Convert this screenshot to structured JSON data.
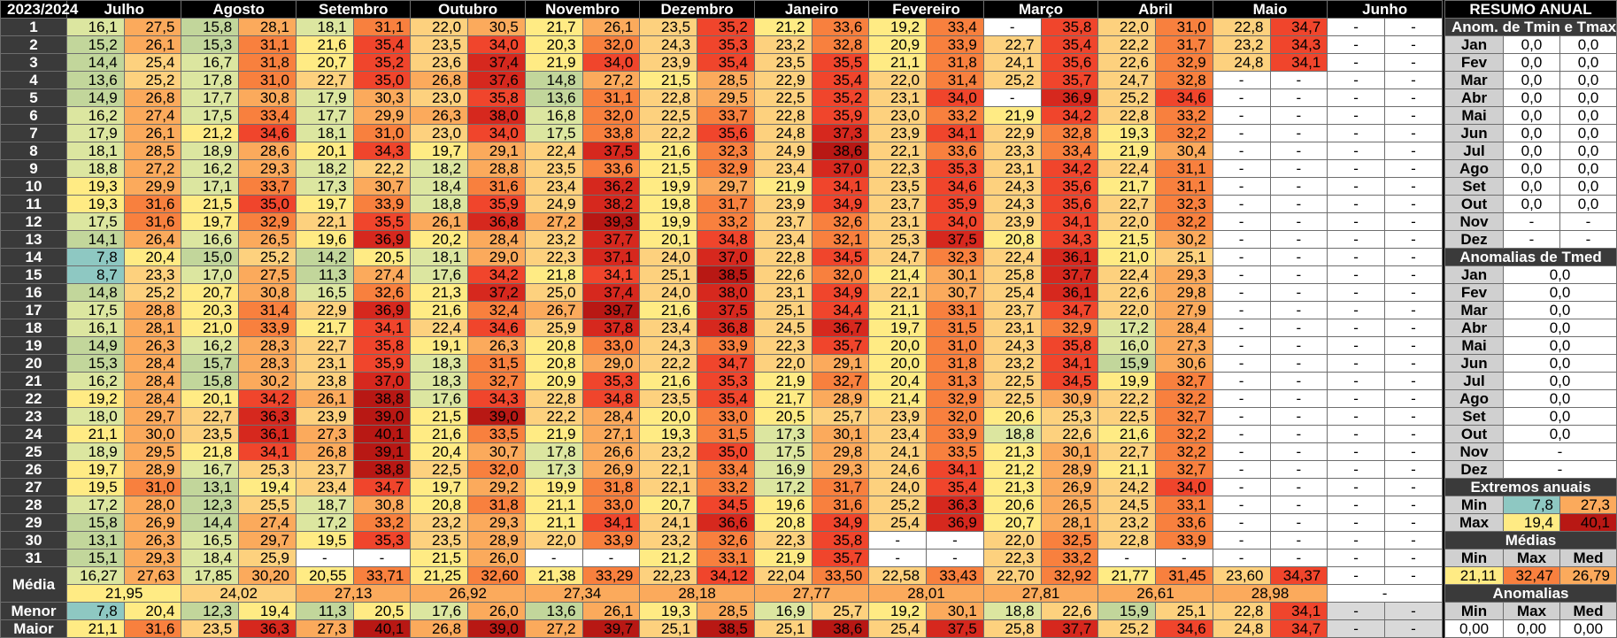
{
  "title": "2023/2024",
  "months": [
    "Julho",
    "Agosto",
    "Setembro",
    "Outubro",
    "Novembro",
    "Dezembro",
    "Janeiro",
    "Fevereiro",
    "Março",
    "Abril",
    "Maio",
    "Junho"
  ],
  "rows": [
    [
      "16,1",
      "27,5",
      "15,8",
      "28,1",
      "18,1",
      "31,1",
      "22,0",
      "30,5",
      "21,7",
      "26,1",
      "23,5",
      "35,2",
      "21,2",
      "33,6",
      "19,2",
      "33,4",
      "-",
      "35,8",
      "22,0",
      "31,0",
      "22,8",
      "34,7",
      "-",
      "-"
    ],
    [
      "15,2",
      "26,1",
      "15,3",
      "31,1",
      "21,6",
      "35,4",
      "23,5",
      "34,0",
      "20,3",
      "32,0",
      "24,3",
      "35,3",
      "23,2",
      "32,8",
      "20,9",
      "33,9",
      "22,7",
      "35,4",
      "22,2",
      "31,7",
      "23,2",
      "34,3",
      "-",
      "-"
    ],
    [
      "14,4",
      "25,4",
      "16,7",
      "31,8",
      "20,7",
      "35,2",
      "23,6",
      "37,4",
      "21,9",
      "34,0",
      "23,9",
      "35,4",
      "23,5",
      "35,5",
      "21,1",
      "31,8",
      "24,1",
      "35,6",
      "22,6",
      "32,9",
      "24,8",
      "34,1",
      "-",
      "-"
    ],
    [
      "13,6",
      "25,2",
      "17,8",
      "31,0",
      "22,7",
      "35,0",
      "26,8",
      "37,6",
      "14,8",
      "27,2",
      "21,5",
      "28,5",
      "22,9",
      "35,4",
      "22,0",
      "31,4",
      "25,2",
      "35,7",
      "24,7",
      "32,8",
      "-",
      "-",
      "-",
      "-"
    ],
    [
      "14,9",
      "26,8",
      "17,7",
      "30,8",
      "17,9",
      "30,3",
      "23,0",
      "35,8",
      "13,6",
      "31,1",
      "22,8",
      "29,5",
      "22,5",
      "35,2",
      "23,1",
      "34,0",
      "-",
      "36,9",
      "25,2",
      "34,6",
      "-",
      "-",
      "-",
      "-"
    ],
    [
      "16,2",
      "27,4",
      "17,5",
      "33,4",
      "17,7",
      "29,9",
      "26,3",
      "38,0",
      "16,8",
      "32,0",
      "22,5",
      "33,7",
      "22,8",
      "35,9",
      "23,0",
      "33,2",
      "21,9",
      "34,2",
      "22,8",
      "33,2",
      "-",
      "-",
      "-",
      "-"
    ],
    [
      "17,9",
      "26,1",
      "21,2",
      "34,6",
      "18,1",
      "31,0",
      "23,0",
      "34,0",
      "17,5",
      "33,8",
      "22,2",
      "35,6",
      "24,8",
      "37,3",
      "23,9",
      "34,1",
      "22,9",
      "32,8",
      "19,3",
      "32,2",
      "-",
      "-",
      "-",
      "-"
    ],
    [
      "18,1",
      "28,5",
      "18,9",
      "28,6",
      "20,1",
      "34,3",
      "19,7",
      "29,1",
      "22,4",
      "37,5",
      "21,6",
      "32,3",
      "24,9",
      "38,6",
      "22,1",
      "33,6",
      "23,3",
      "33,4",
      "21,9",
      "30,4",
      "-",
      "-",
      "-",
      "-"
    ],
    [
      "18,8",
      "27,2",
      "16,2",
      "29,3",
      "18,2",
      "22,2",
      "18,2",
      "28,8",
      "23,5",
      "33,6",
      "21,5",
      "32,9",
      "23,4",
      "37,0",
      "22,3",
      "35,3",
      "23,1",
      "34,2",
      "22,4",
      "31,1",
      "-",
      "-",
      "-",
      "-"
    ],
    [
      "19,3",
      "29,9",
      "17,1",
      "33,7",
      "17,3",
      "30,7",
      "18,4",
      "31,6",
      "23,4",
      "36,2",
      "19,9",
      "29,7",
      "21,9",
      "34,1",
      "23,5",
      "34,6",
      "24,3",
      "35,6",
      "21,7",
      "31,1",
      "-",
      "-",
      "-",
      "-"
    ],
    [
      "19,3",
      "31,6",
      "21,5",
      "35,0",
      "19,7",
      "33,9",
      "18,8",
      "35,9",
      "24,9",
      "38,2",
      "19,8",
      "31,7",
      "23,9",
      "34,9",
      "23,7",
      "35,9",
      "24,3",
      "35,6",
      "22,7",
      "32,3",
      "-",
      "-",
      "-",
      "-"
    ],
    [
      "17,5",
      "31,6",
      "19,7",
      "32,9",
      "22,1",
      "35,5",
      "26,1",
      "36,8",
      "27,2",
      "39,3",
      "19,9",
      "33,2",
      "23,7",
      "32,6",
      "23,1",
      "34,0",
      "23,9",
      "34,1",
      "22,0",
      "32,2",
      "-",
      "-",
      "-",
      "-"
    ],
    [
      "14,1",
      "26,4",
      "16,6",
      "26,5",
      "19,6",
      "36,9",
      "20,2",
      "28,4",
      "23,2",
      "37,7",
      "20,1",
      "34,8",
      "23,4",
      "32,1",
      "25,3",
      "37,5",
      "20,8",
      "34,3",
      "21,5",
      "30,2",
      "-",
      "-",
      "-",
      "-"
    ],
    [
      "7,8",
      "20,4",
      "15,0",
      "25,2",
      "14,2",
      "20,5",
      "18,1",
      "29,0",
      "22,3",
      "37,1",
      "24,0",
      "37,0",
      "22,8",
      "34,5",
      "24,7",
      "32,3",
      "22,4",
      "36,1",
      "21,0",
      "25,1",
      "-",
      "-",
      "-",
      "-"
    ],
    [
      "8,7",
      "23,3",
      "17,0",
      "27,5",
      "11,3",
      "27,4",
      "17,6",
      "34,2",
      "21,8",
      "34,1",
      "25,1",
      "38,5",
      "22,6",
      "32,0",
      "21,4",
      "30,1",
      "25,8",
      "37,7",
      "22,4",
      "29,3",
      "-",
      "-",
      "-",
      "-"
    ],
    [
      "14,8",
      "25,2",
      "20,7",
      "30,8",
      "16,5",
      "32,6",
      "21,3",
      "37,2",
      "25,0",
      "37,4",
      "24,0",
      "38,0",
      "23,1",
      "34,9",
      "22,1",
      "30,7",
      "25,4",
      "36,1",
      "22,6",
      "29,8",
      "-",
      "-",
      "-",
      "-"
    ],
    [
      "17,5",
      "28,8",
      "20,3",
      "31,4",
      "22,9",
      "36,9",
      "21,6",
      "32,4",
      "26,7",
      "39,7",
      "21,6",
      "37,5",
      "25,1",
      "34,4",
      "21,1",
      "33,1",
      "23,7",
      "34,7",
      "22,0",
      "27,9",
      "-",
      "-",
      "-",
      "-"
    ],
    [
      "16,1",
      "28,1",
      "21,0",
      "33,9",
      "21,7",
      "34,1",
      "22,4",
      "34,6",
      "25,9",
      "37,8",
      "23,4",
      "36,8",
      "24,5",
      "36,7",
      "19,7",
      "31,5",
      "23,1",
      "32,9",
      "17,2",
      "28,4",
      "-",
      "-",
      "-",
      "-"
    ],
    [
      "14,9",
      "26,3",
      "16,2",
      "28,3",
      "22,7",
      "35,8",
      "19,1",
      "26,3",
      "20,8",
      "33,0",
      "24,3",
      "33,9",
      "22,3",
      "35,7",
      "20,0",
      "31,0",
      "24,3",
      "35,8",
      "16,0",
      "27,3",
      "-",
      "-",
      "-",
      "-"
    ],
    [
      "15,3",
      "28,4",
      "15,7",
      "28,3",
      "23,1",
      "35,9",
      "18,3",
      "31,5",
      "20,8",
      "29,0",
      "22,2",
      "34,7",
      "22,0",
      "29,1",
      "20,0",
      "31,8",
      "23,2",
      "34,1",
      "15,9",
      "30,6",
      "-",
      "-",
      "-",
      "-"
    ],
    [
      "16,2",
      "28,4",
      "15,8",
      "30,2",
      "23,8",
      "37,0",
      "18,3",
      "32,7",
      "20,9",
      "35,3",
      "21,6",
      "35,3",
      "21,9",
      "32,7",
      "20,4",
      "31,3",
      "22,5",
      "34,5",
      "19,9",
      "32,7",
      "-",
      "-",
      "-",
      "-"
    ],
    [
      "19,2",
      "28,4",
      "20,1",
      "34,2",
      "26,1",
      "38,8",
      "17,6",
      "34,3",
      "22,8",
      "34,8",
      "23,5",
      "35,4",
      "21,7",
      "28,9",
      "21,4",
      "32,9",
      "22,5",
      "30,9",
      "22,2",
      "32,2",
      "-",
      "-",
      "-",
      "-"
    ],
    [
      "18,0",
      "29,7",
      "22,7",
      "36,3",
      "23,9",
      "39,0",
      "21,5",
      "39,0",
      "22,2",
      "28,4",
      "20,0",
      "33,0",
      "20,5",
      "25,7",
      "23,9",
      "32,0",
      "20,6",
      "25,3",
      "22,5",
      "32,7",
      "-",
      "-",
      "-",
      "-"
    ],
    [
      "21,1",
      "30,0",
      "23,5",
      "36,1",
      "27,3",
      "40,1",
      "21,6",
      "33,5",
      "21,9",
      "27,1",
      "19,3",
      "31,5",
      "17,3",
      "30,1",
      "23,4",
      "33,9",
      "18,8",
      "22,6",
      "21,6",
      "32,2",
      "-",
      "-",
      "-",
      "-"
    ],
    [
      "18,9",
      "29,5",
      "21,8",
      "34,1",
      "26,8",
      "39,1",
      "20,4",
      "30,7",
      "17,8",
      "26,6",
      "23,2",
      "35,0",
      "17,5",
      "29,8",
      "24,1",
      "33,5",
      "21,3",
      "30,1",
      "22,7",
      "32,2",
      "-",
      "-",
      "-",
      "-"
    ],
    [
      "19,7",
      "28,9",
      "16,7",
      "25,3",
      "23,7",
      "38,8",
      "22,5",
      "32,0",
      "17,3",
      "26,9",
      "22,1",
      "33,4",
      "16,9",
      "29,3",
      "24,6",
      "34,1",
      "21,2",
      "28,9",
      "21,1",
      "32,7",
      "-",
      "-",
      "-",
      "-"
    ],
    [
      "19,5",
      "31,0",
      "13,1",
      "19,4",
      "23,4",
      "34,7",
      "19,7",
      "29,2",
      "19,9",
      "31,8",
      "22,1",
      "33,2",
      "17,2",
      "31,7",
      "24,0",
      "35,4",
      "21,3",
      "26,9",
      "24,2",
      "34,0",
      "-",
      "-",
      "-",
      "-"
    ],
    [
      "17,2",
      "28,0",
      "12,3",
      "25,5",
      "18,7",
      "30,8",
      "20,8",
      "31,8",
      "21,1",
      "33,0",
      "20,7",
      "34,5",
      "19,6",
      "31,6",
      "25,2",
      "36,3",
      "20,6",
      "26,5",
      "24,5",
      "33,1",
      "-",
      "-",
      "-",
      "-"
    ],
    [
      "15,8",
      "26,9",
      "14,4",
      "27,4",
      "17,2",
      "33,2",
      "23,2",
      "29,3",
      "21,1",
      "34,1",
      "24,1",
      "36,6",
      "20,8",
      "34,9",
      "25,4",
      "36,9",
      "20,7",
      "28,1",
      "23,2",
      "33,6",
      "-",
      "-",
      "-",
      "-"
    ],
    [
      "13,1",
      "26,3",
      "16,5",
      "29,7",
      "19,5",
      "35,3",
      "23,5",
      "28,9",
      "22,0",
      "33,9",
      "23,2",
      "32,6",
      "22,3",
      "35,8",
      "-",
      "-",
      "22,0",
      "32,5",
      "22,8",
      "33,9",
      "-",
      "-",
      "-",
      "-"
    ],
    [
      "15,1",
      "29,3",
      "18,4",
      "25,9",
      "-",
      "-",
      "21,5",
      "26,0",
      "-",
      "-",
      "21,2",
      "33,1",
      "21,9",
      "35,7",
      "-",
      "-",
      "22,3",
      "33,2",
      "-",
      "-",
      "-",
      "-",
      "-",
      "-"
    ]
  ],
  "media_label": "Média",
  "media_pairs": [
    "16,27",
    "27,63",
    "17,85",
    "30,20",
    "20,55",
    "33,71",
    "21,25",
    "32,60",
    "21,38",
    "33,29",
    "22,23",
    "34,12",
    "22,04",
    "33,50",
    "22,58",
    "33,43",
    "22,70",
    "32,92",
    "21,77",
    "31,45",
    "23,60",
    "34,37",
    "-",
    "-"
  ],
  "media_med": [
    "21,95",
    "24,02",
    "27,13",
    "26,92",
    "27,34",
    "28,18",
    "27,77",
    "28,01",
    "27,81",
    "26,61",
    "28,98",
    "-"
  ],
  "menor_label": "Menor",
  "menor": [
    "7,8",
    "20,4",
    "12,3",
    "19,4",
    "11,3",
    "20,5",
    "17,6",
    "26,0",
    "13,6",
    "26,1",
    "19,3",
    "28,5",
    "16,9",
    "25,7",
    "19,2",
    "30,1",
    "18,8",
    "22,6",
    "15,9",
    "25,1",
    "22,8",
    "34,1",
    "-",
    "-"
  ],
  "maior_label": "Maior",
  "maior": [
    "21,1",
    "31,6",
    "23,5",
    "36,3",
    "27,3",
    "40,1",
    "26,8",
    "39,0",
    "27,2",
    "39,7",
    "25,1",
    "38,5",
    "25,1",
    "38,6",
    "25,4",
    "37,5",
    "25,8",
    "37,7",
    "25,2",
    "34,6",
    "24,8",
    "34,7",
    "-",
    "-"
  ],
  "side": {
    "title": "RESUMO ANUAL",
    "anom_title": "Anom. de Tmin e Tmax",
    "anom_rows": [
      {
        "m": "Jan",
        "a": "0,0",
        "b": "0,0"
      },
      {
        "m": "Fev",
        "a": "0,0",
        "b": "0,0"
      },
      {
        "m": "Mar",
        "a": "0,0",
        "b": "0,0"
      },
      {
        "m": "Abr",
        "a": "0,0",
        "b": "0,0"
      },
      {
        "m": "Mai",
        "a": "0,0",
        "b": "0,0"
      },
      {
        "m": "Jun",
        "a": "0,0",
        "b": "0,0"
      },
      {
        "m": "Jul",
        "a": "0,0",
        "b": "0,0"
      },
      {
        "m": "Ago",
        "a": "0,0",
        "b": "0,0"
      },
      {
        "m": "Set",
        "a": "0,0",
        "b": "0,0"
      },
      {
        "m": "Out",
        "a": "0,0",
        "b": "0,0"
      },
      {
        "m": "Nov",
        "a": "-",
        "b": "-"
      },
      {
        "m": "Dez",
        "a": "-",
        "b": "-"
      }
    ],
    "tmed_title": "Anomalias de Tmed",
    "tmed_rows": [
      {
        "m": "Jan",
        "v": "0,0"
      },
      {
        "m": "Fev",
        "v": "0,0"
      },
      {
        "m": "Mar",
        "v": "0,0"
      },
      {
        "m": "Abr",
        "v": "0,0"
      },
      {
        "m": "Mai",
        "v": "0,0"
      },
      {
        "m": "Jun",
        "v": "0,0"
      },
      {
        "m": "Jul",
        "v": "0,0"
      },
      {
        "m": "Ago",
        "v": "0,0"
      },
      {
        "m": "Set",
        "v": "0,0"
      },
      {
        "m": "Out",
        "v": "0,0"
      },
      {
        "m": "Nov",
        "v": "-"
      },
      {
        "m": "Dez",
        "v": "-"
      }
    ],
    "ext_title": "Extremos anuais",
    "ext_min_label": "Min",
    "ext_min_a": "7,8",
    "ext_min_b": "27,3",
    "ext_max_label": "Max",
    "ext_max_a": "19,4",
    "ext_max_b": "40,1",
    "medias_title": "Médias",
    "medias_head": [
      "Min",
      "Max",
      "Med"
    ],
    "medias_vals": [
      "21,11",
      "32,47",
      "26,79"
    ],
    "anomalias_title": "Anomalias",
    "anomalias_head": [
      "Min",
      "Max",
      "Med"
    ],
    "anomalias_vals": [
      "0,00",
      "0,00",
      "0,00"
    ]
  },
  "palette": {
    "blue": "#8ec8c2",
    "green": "#c2d69b",
    "lime": "#dce6a0",
    "yellow": "#ffeb84",
    "lorange": "#fdd17e",
    "orange": "#fbaa5c",
    "dorange": "#f8803e",
    "red": "#f0452c",
    "dred": "#d6281e",
    "vdred": "#b81814",
    "white": "#ffffff",
    "gray": "#d9d9d9"
  }
}
